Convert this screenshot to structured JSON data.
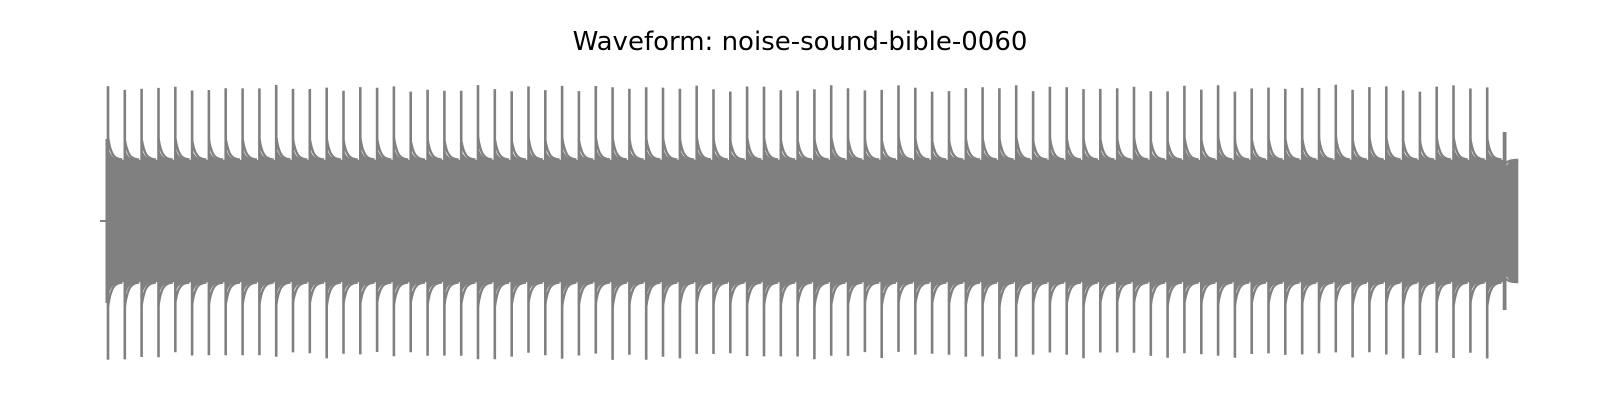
{
  "chart_data": {
    "type": "waveform",
    "title": "Waveform: noise-sound-bible-0060",
    "xlabel": "",
    "ylabel": "",
    "axes_visible": false,
    "grid": false,
    "line_color": "#808080",
    "ylim": [
      -1.0,
      1.0
    ],
    "pulse_count": 84,
    "pulse_peaks": {
      "positive": 0.98,
      "negative": -1.0,
      "last_pulse_positive": 0.64,
      "last_pulse_negative": -0.64
    },
    "sustained_amplitude": 0.44,
    "start_edge_amplitude": 0.44,
    "end_edge_amplitude": 0.54
  }
}
